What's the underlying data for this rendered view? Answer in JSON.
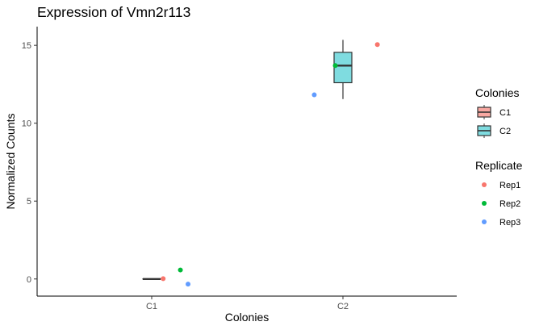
{
  "chart_data": {
    "type": "box",
    "title": "Expression of Vmn2r113",
    "xlabel": "Colonies",
    "ylabel": "Normalized Counts",
    "categories": [
      "C1",
      "C2"
    ],
    "ylim": [
      -1.1,
      16.2
    ],
    "yticks": [
      0,
      5,
      10,
      15
    ],
    "grid": false,
    "legend_position": "right",
    "boxes": [
      {
        "category": "C1",
        "fill": "#F8A8A2",
        "min": 0,
        "q1": 0,
        "median": 0,
        "q3": 0,
        "max": 0
      },
      {
        "category": "C2",
        "fill": "#7FDCE0",
        "min": 11.55,
        "q1": 12.6,
        "median": 13.7,
        "q3": 14.55,
        "max": 15.35
      }
    ],
    "points": [
      {
        "category": "C1",
        "replicate": "Rep1",
        "offset": 0.06,
        "y": 0.02
      },
      {
        "category": "C1",
        "replicate": "Rep2",
        "offset": 0.15,
        "y": 0.58
      },
      {
        "category": "C1",
        "replicate": "Rep3",
        "offset": 0.19,
        "y": -0.33
      },
      {
        "category": "C2",
        "replicate": "Rep1",
        "offset": 0.18,
        "y": 15.05
      },
      {
        "category": "C2",
        "replicate": "Rep2",
        "offset": -0.04,
        "y": 13.7
      },
      {
        "category": "C2",
        "replicate": "Rep3",
        "offset": -0.15,
        "y": 11.82
      }
    ],
    "legends": [
      {
        "title": "Colonies",
        "kind": "box",
        "items": [
          {
            "label": "C1",
            "color": "#F8A8A2"
          },
          {
            "label": "C2",
            "color": "#7FDCE0"
          }
        ]
      },
      {
        "title": "Replicate",
        "kind": "point",
        "items": [
          {
            "label": "Rep1",
            "color": "#F8766D"
          },
          {
            "label": "Rep2",
            "color": "#00BA38"
          },
          {
            "label": "Rep3",
            "color": "#619CFF"
          }
        ]
      }
    ]
  }
}
